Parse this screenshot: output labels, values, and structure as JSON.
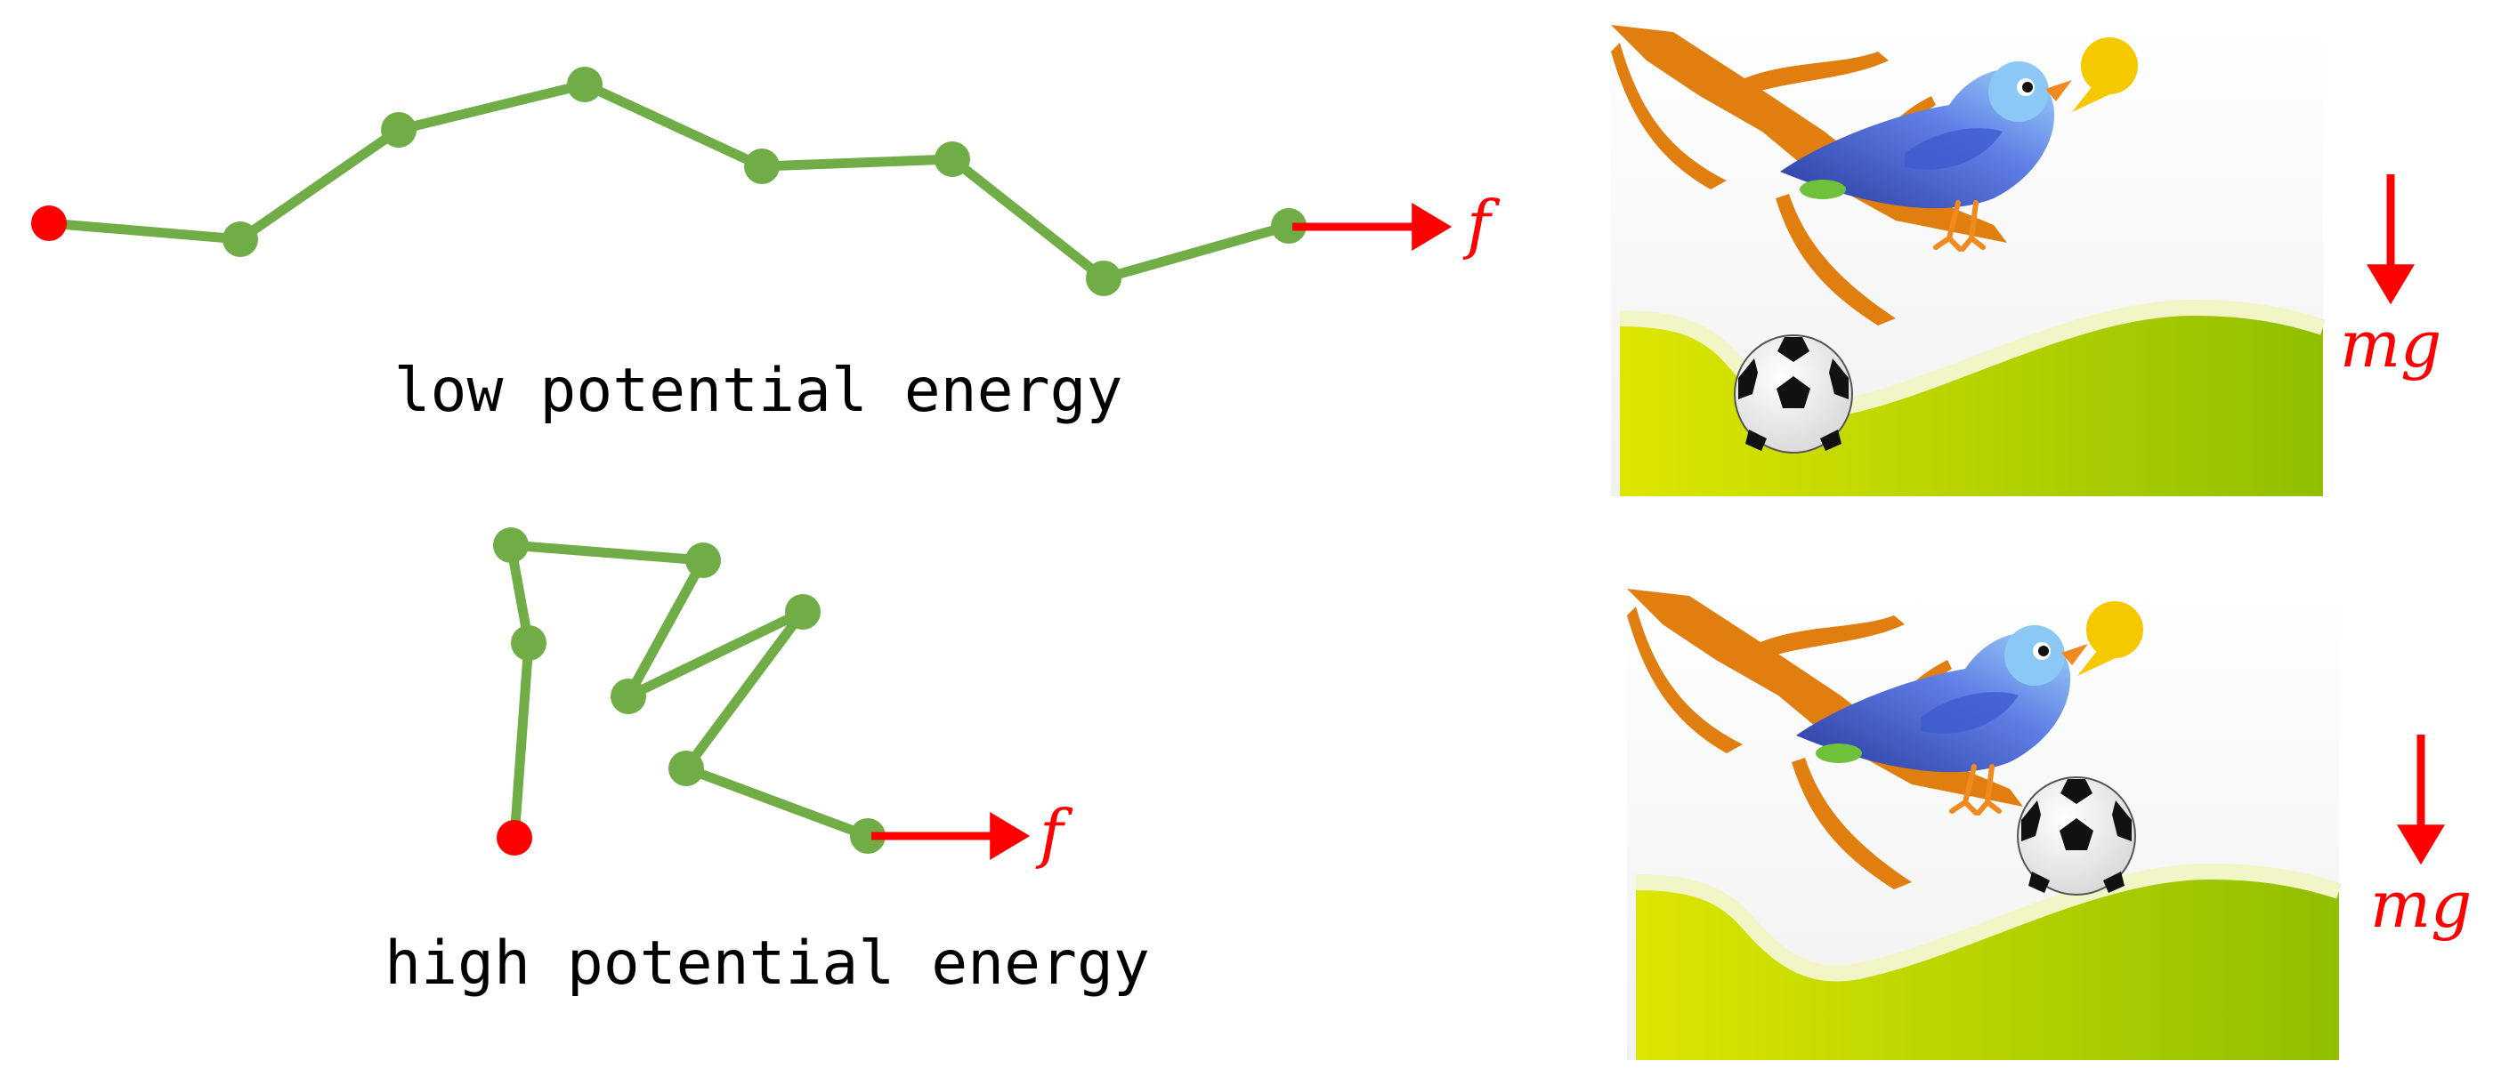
{
  "colors": {
    "chain": "#70ad47",
    "anchor": "#ff0000",
    "force": "#ff0000",
    "ground_light": "#dde600",
    "ground_dark": "#8fbf00",
    "ground_rim": "#f2f6c6",
    "branch": "#e07f0f",
    "bird_body": "#5f7fe6",
    "bird_head": "#8cc8f5",
    "speech_bubble": "#f5c800"
  },
  "panels": [
    {
      "caption": "low potential energy",
      "force_label": "f",
      "gravity_label": "mg",
      "chain": [
        [
          55,
          251
        ],
        [
          270,
          269
        ],
        [
          448,
          146
        ],
        [
          657,
          95
        ],
        [
          856,
          187
        ],
        [
          1070,
          179
        ],
        [
          1240,
          313
        ],
        [
          1448,
          254
        ]
      ]
    },
    {
      "caption": "high potential energy",
      "force_label": "f",
      "gravity_label": "mg",
      "chain": [
        [
          578,
          942
        ],
        [
          594,
          723
        ],
        [
          574,
          613
        ],
        [
          790,
          630
        ],
        [
          706,
          783
        ],
        [
          902,
          688
        ],
        [
          771,
          864
        ],
        [
          975,
          940
        ]
      ]
    }
  ],
  "icons": [
    "bird-icon",
    "branch-icon",
    "soccer-ball-icon",
    "speech-bubble-icon",
    "hill-icon"
  ]
}
